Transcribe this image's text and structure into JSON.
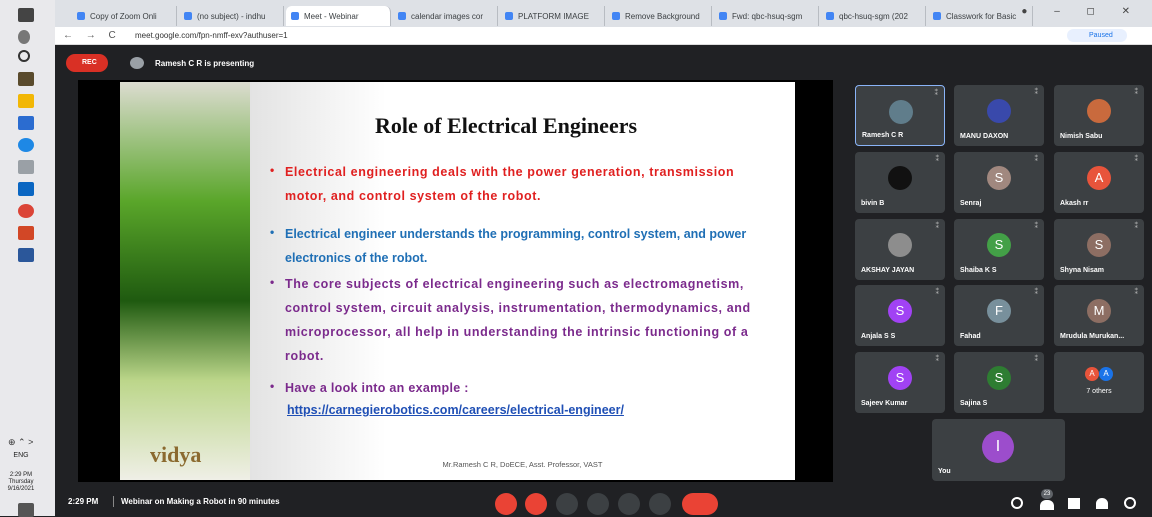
{
  "browser": {
    "tabs": [
      "Copy of Zoom Onli",
      "(no subject) - indhu",
      "Meet - Webinar",
      "calendar images cor",
      "PLATFORM IMAGE",
      "Remove Background",
      "Fwd: qbc-hsuq-sgm",
      "qbc-hsuq-sgm (202",
      "Classwork for Basic"
    ],
    "url": "meet.google.com/fpn-nmff-exv?authuser=1",
    "profile_status": "Paused"
  },
  "taskbar": {
    "language": "ENG",
    "time": "2:29 PM",
    "day": "Thursday",
    "date": "9/16/2021"
  },
  "meet": {
    "rec": "REC",
    "presenting": "Ramesh C R is presenting",
    "slide": {
      "title": "Role of Electrical Engineers",
      "bullets": [
        {
          "text": "Electrical engineering deals with the power generation, transmission motor, and control system of the robot.",
          "color": "#e02020"
        },
        {
          "text": "Electrical engineer understands the programming, control system, and power electronics of the robot.",
          "color": "#1f6fb5"
        },
        {
          "text": "The core subjects of electrical engineering such as electromagnetism, control system, circuit analysis, instrumentation, thermodynamics, and microprocessor, all help in understanding the intrinsic functioning of a robot.",
          "color": "#7b2a8c"
        },
        {
          "text": "Have a look into an example :",
          "color": "#7b2a8c"
        }
      ],
      "link": "https://carnegierobotics.com/careers/electrical-engineer/",
      "logo": "vidya",
      "footer": "Mr.Ramesh C R, DoECE, Asst. Professor, VAST"
    },
    "participants": [
      {
        "name": "Ramesh C R",
        "color": "#607d8b"
      },
      {
        "name": "MANU DAXON",
        "color": "#3949ab"
      },
      {
        "name": "Nimish Sabu",
        "color": "#c96a3d"
      },
      {
        "name": "bivin B",
        "color": "#111111"
      },
      {
        "name": "Senraj",
        "initial": "S",
        "color": "#a1887f"
      },
      {
        "name": "Akash rr",
        "initial": "A",
        "color": "#e8543b"
      },
      {
        "name": "AKSHAY JAYAN",
        "color": "#8d8d8d"
      },
      {
        "name": "Shaiba K S",
        "initial": "S",
        "color": "#43a047"
      },
      {
        "name": "Shyna Nisam",
        "initial": "S",
        "color": "#8d6e63"
      },
      {
        "name": "Anjala S S",
        "initial": "S",
        "color": "#a142f4"
      },
      {
        "name": "Fahad",
        "initial": "F",
        "color": "#78909c"
      },
      {
        "name": "Mrudula Murukan...",
        "initial": "M",
        "color": "#8d6e63"
      },
      {
        "name": "Sajeev Kumar",
        "initial": "S",
        "color": "#a142f4"
      },
      {
        "name": "Sajina S",
        "initial": "S",
        "color": "#2e7d32"
      }
    ],
    "others": {
      "initials": [
        "A",
        "A"
      ],
      "label": "7 others"
    },
    "self": {
      "name": "You",
      "initial": "I"
    },
    "bottom": {
      "time": "2:29 PM",
      "meeting": "Webinar on Making a Robot in 90 minutes",
      "people_count": "23"
    }
  }
}
